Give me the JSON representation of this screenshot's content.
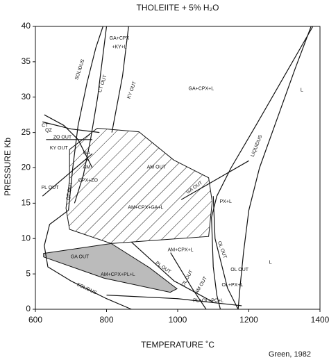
{
  "chart_data": {
    "type": "line",
    "title": "THOLEIITE + 5% H₂O",
    "xlabel": "TEMPERATURE ˚C",
    "ylabel": "PRESSURE Kb",
    "credit": "Green, 1982",
    "xlim": [
      600,
      1400
    ],
    "ylim": [
      0,
      40
    ],
    "xticks": [
      600,
      800,
      1000,
      1200,
      1400
    ],
    "yticks": [
      0,
      5,
      10,
      15,
      20,
      25,
      30,
      35,
      40
    ],
    "line_color": "#111111",
    "series": [
      {
        "x": [
          693,
          705,
          720,
          745,
          770,
          790
        ],
        "values": [
          14,
          20,
          26,
          32,
          37,
          40
        ]
      },
      {
        "x": [
          693,
          640,
          625,
          635,
          700,
          800,
          870
        ],
        "values": [
          14,
          12,
          9,
          6,
          4,
          1.5,
          0
        ]
      },
      {
        "x": [
          800,
          775,
          755,
          735,
          710
        ],
        "values": [
          40,
          30,
          24,
          19,
          15
        ]
      },
      {
        "x": [
          862,
          845,
          815
        ],
        "values": [
          40,
          33,
          25
        ]
      },
      {
        "x": [
          620,
          700,
          780
        ],
        "values": [
          26.5,
          25.5,
          25
        ]
      },
      {
        "x": [
          630,
          700,
          760
        ],
        "values": [
          24,
          24,
          24
        ]
      },
      {
        "x": [
          625,
          680,
          720,
          760
        ],
        "values": [
          27.5,
          26,
          24,
          20
        ]
      },
      {
        "x": [
          1375,
          1330,
          1280,
          1230,
          1200,
          1185,
          1175,
          1170
        ],
        "values": [
          40,
          34,
          27,
          20,
          14,
          8,
          3,
          0
        ]
      },
      {
        "x": [
          1380,
          1300,
          1220,
          1150,
          1110,
          1095,
          1100,
          1110,
          1120
        ],
        "values": [
          40,
          33,
          26,
          20,
          16,
          13,
          6,
          2,
          0
        ]
      },
      {
        "x": [
          1100,
          1105,
          1140,
          1170
        ],
        "values": [
          16,
          10,
          3,
          0
        ]
      },
      {
        "x": [
          1010,
          1200
        ],
        "values": [
          15.5,
          21
        ]
      },
      {
        "x": [
          980,
          1040,
          1080
        ],
        "values": [
          8,
          3,
          0
        ]
      },
      {
        "x": [
          870,
          990,
          1100
        ],
        "values": [
          9.5,
          4,
          1
        ]
      },
      {
        "x": [
          800,
          1000,
          1180
        ],
        "values": [
          2,
          1.5,
          0.5
        ]
      },
      {
        "x": [
          620,
          690,
          760
        ],
        "values": [
          16,
          19,
          22
        ]
      }
    ],
    "areas": [
      {
        "x": [
          696,
          774,
          891,
          989,
          1087,
          1097,
          1087,
          950,
          813,
          696,
          686,
          696
        ],
        "values": [
          22.6,
          25.6,
          25.1,
          21.1,
          18.6,
          15.2,
          10.3,
          9.8,
          9.3,
          11.3,
          14.3,
          18.2
        ],
        "hatch": true
      },
      {
        "x": [
          623,
          813,
          920,
          998,
          979,
          793,
          623
        ],
        "values": [
          7.9,
          9.3,
          5.9,
          2.9,
          2.4,
          4.4,
          7.4
        ],
        "color": "#bbbbbb"
      }
    ],
    "annotations": [
      {
        "text": "CT",
        "x": 627,
        "y": 26.0
      },
      {
        "text": "QZ",
        "x": 637,
        "y": 25.3
      },
      {
        "text": "ZO OUT",
        "x": 676,
        "y": 24.3
      },
      {
        "text": "KY OUT",
        "x": 666,
        "y": 22.8
      },
      {
        "text": "GA+CPX",
        "x": 836,
        "y": 38.3
      },
      {
        "text": "+KY+L",
        "x": 836,
        "y": 37.1
      },
      {
        "text": "SOLIDUS",
        "x": 725,
        "y": 33.9
      },
      {
        "text": "CT OUT",
        "x": 789,
        "y": 31.9
      },
      {
        "text": "KY OUT",
        "x": 871,
        "y": 31.0
      },
      {
        "text": "GA+CPX+L",
        "x": 1066,
        "y": 31.2
      },
      {
        "text": "L",
        "x": 1349,
        "y": 31.0
      },
      {
        "text": "LIQUIDUS",
        "x": 1222,
        "y": 23.1
      },
      {
        "text": "GA",
        "x": 744,
        "y": 22.1
      },
      {
        "text": "+",
        "x": 744,
        "y": 21.1
      },
      {
        "text": "AM",
        "x": 744,
        "y": 20.1
      },
      {
        "text": "CPX+ZO",
        "x": 748,
        "y": 18.2
      },
      {
        "text": "QZ OUT",
        "x": 696,
        "y": 16.7
      },
      {
        "text": "PL OUT",
        "x": 641,
        "y": 17.2
      },
      {
        "text": "AM OUT",
        "x": 940,
        "y": 20.1
      },
      {
        "text": "AM+CPX+GA+L",
        "x": 910,
        "y": 14.4
      },
      {
        "text": "GA OUT",
        "x": 1047,
        "y": 17.2
      },
      {
        "text": "PX+L",
        "x": 1135,
        "y": 15.2
      },
      {
        "text": "OL OUT",
        "x": 1125,
        "y": 8.4
      },
      {
        "text": "AM+CPX+L",
        "x": 1008,
        "y": 8.4
      },
      {
        "text": "GA OUT",
        "x": 725,
        "y": 7.4
      },
      {
        "text": "AM+CPX+PL+L",
        "x": 832,
        "y": 4.9
      },
      {
        "text": "PL OUT",
        "x": 959,
        "y": 5.9
      },
      {
        "text": "OL OUT",
        "x": 1027,
        "y": 4.4
      },
      {
        "text": "AM OUT",
        "x": 1066,
        "y": 3.4
      },
      {
        "text": "OL+PX+L",
        "x": 1154,
        "y": 3.4
      },
      {
        "text": "OL OUT",
        "x": 1174,
        "y": 5.6
      },
      {
        "text": "PL+OL+PC+L",
        "x": 1086,
        "y": 1.2
      },
      {
        "text": "SOLIDUS",
        "x": 744,
        "y": 2.9
      },
      {
        "text": "L",
        "x": 1261,
        "y": 6.6
      }
    ]
  }
}
